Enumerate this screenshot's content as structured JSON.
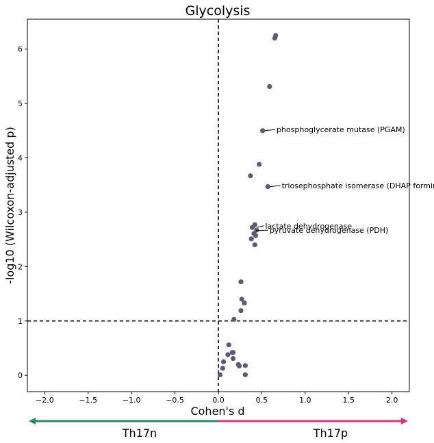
{
  "chart_data": {
    "type": "scatter",
    "title": "Glycolysis",
    "xlabel": "Cohen's d",
    "ylabel": "-log10 (Wilcoxon-adjusted p)",
    "xlim": [
      -2.2,
      2.2
    ],
    "ylim": [
      -0.3,
      6.55
    ],
    "xticks": [
      -2.0,
      -1.5,
      -1.0,
      -0.5,
      0.0,
      0.5,
      1.0,
      1.5,
      2.0
    ],
    "xtick_labels": [
      "−2.0",
      "−1.5",
      "−1.0",
      "−0.5",
      "0.0",
      "0.5",
      "1.0",
      "1.5",
      "2.0"
    ],
    "yticks": [
      0,
      1,
      2,
      3,
      4,
      5,
      6
    ],
    "ytick_labels": [
      "0",
      "1",
      "2",
      "3",
      "4",
      "5",
      "6"
    ],
    "grid": false,
    "reference_lines": {
      "vertical_x": 0.0,
      "horizontal_y": 1.0,
      "style": "dashed"
    },
    "point_color": "#5e5872",
    "points": [
      {
        "x": 0.66,
        "y": 6.25
      },
      {
        "x": 0.65,
        "y": 6.2
      },
      {
        "x": 0.59,
        "y": 5.31
      },
      {
        "x": 0.51,
        "y": 4.5
      },
      {
        "x": 0.47,
        "y": 3.88
      },
      {
        "x": 0.37,
        "y": 3.67
      },
      {
        "x": 0.57,
        "y": 3.47
      },
      {
        "x": 0.42,
        "y": 2.77
      },
      {
        "x": 0.39,
        "y": 2.72
      },
      {
        "x": 0.44,
        "y": 2.67
      },
      {
        "x": 0.41,
        "y": 2.61
      },
      {
        "x": 0.43,
        "y": 2.57
      },
      {
        "x": 0.38,
        "y": 2.51
      },
      {
        "x": 0.42,
        "y": 2.4
      },
      {
        "x": 0.26,
        "y": 1.72
      },
      {
        "x": 0.27,
        "y": 1.4
      },
      {
        "x": 0.3,
        "y": 1.33
      },
      {
        "x": 0.26,
        "y": 1.19
      },
      {
        "x": 0.18,
        "y": 1.03
      },
      {
        "x": 0.12,
        "y": 0.56
      },
      {
        "x": 0.11,
        "y": 0.38
      },
      {
        "x": 0.17,
        "y": 0.42
      },
      {
        "x": 0.16,
        "y": 0.42
      },
      {
        "x": 0.17,
        "y": 0.31
      },
      {
        "x": 0.06,
        "y": 0.25
      },
      {
        "x": 0.23,
        "y": 0.2
      },
      {
        "x": 0.24,
        "y": 0.17
      },
      {
        "x": 0.31,
        "y": 0.18
      },
      {
        "x": 0.05,
        "y": 0.13
      },
      {
        "x": 0.02,
        "y": 0.01
      },
      {
        "x": 0.31,
        "y": 0.01
      }
    ],
    "annotations": [
      {
        "text": "phosphoglycerate mutase (PGAM)",
        "x": 0.51,
        "y": 4.5,
        "text_x": 0.67,
        "text_y": 4.52
      },
      {
        "text": "triosephosphate isomerase (DHAP forming)",
        "x": 0.57,
        "y": 3.47,
        "text_x": 0.73,
        "text_y": 3.49
      },
      {
        "text": "lactate dehydrogenase",
        "x": 0.42,
        "y": 2.72,
        "text_x": 0.54,
        "text_y": 2.75
      },
      {
        "text": "pyruvate dehydrogenase (PDH)",
        "x": 0.41,
        "y": 2.66,
        "text_x": 0.59,
        "text_y": 2.67
      }
    ],
    "group_arrows": {
      "left": {
        "label": "Th17n",
        "color": "#2a8a6a"
      },
      "right": {
        "label": "Th17p",
        "color": "#e0307f"
      }
    }
  }
}
